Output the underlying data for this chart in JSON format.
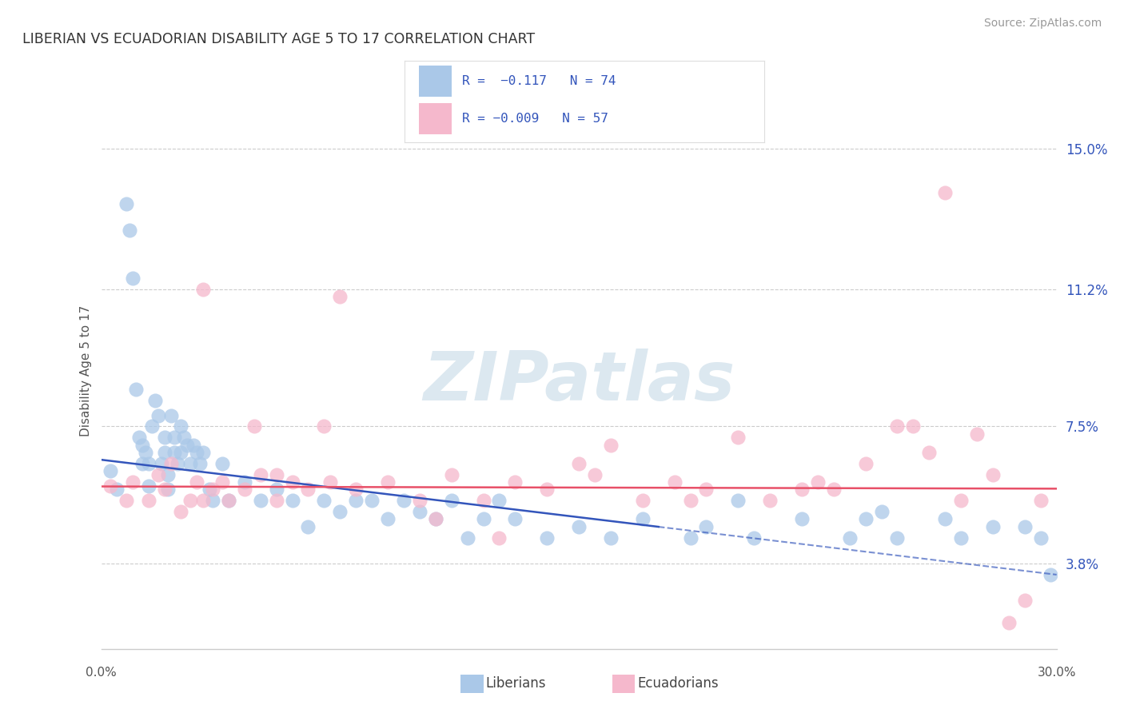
{
  "title": "LIBERIAN VS ECUADORIAN DISABILITY AGE 5 TO 17 CORRELATION CHART",
  "source": "Source: ZipAtlas.com",
  "ylabel": "Disability Age 5 to 17",
  "xlim": [
    0.0,
    30.0
  ],
  "ylim": [
    1.5,
    16.5
  ],
  "yticks": [
    3.8,
    7.5,
    11.2,
    15.0
  ],
  "ytick_labels": [
    "3.8%",
    "7.5%",
    "11.2%",
    "15.0%"
  ],
  "xtick_left": "0.0%",
  "xtick_right": "30.0%",
  "bg_color": "#ffffff",
  "grid_color": "#cccccc",
  "liberian_dot_color": "#aac8e8",
  "ecuadorian_dot_color": "#f5b8cc",
  "liberian_line_color": "#3355bb",
  "ecuadorian_line_color": "#e85068",
  "tick_label_color": "#3355bb",
  "title_color": "#333333",
  "source_color": "#999999",
  "axis_label_color": "#555555",
  "watermark_color": "#dce8f0",
  "legend_text_color": "#3355bb",
  "legend_border_color": "#dddddd",
  "lib_trend_y0": 6.6,
  "lib_trend_y1": 3.5,
  "ecu_trend_y0": 5.88,
  "ecu_trend_y1": 5.82,
  "lib_dash_start_x": 17.5,
  "liberian_x": [
    0.3,
    0.5,
    0.8,
    0.9,
    1.0,
    1.1,
    1.2,
    1.3,
    1.3,
    1.4,
    1.5,
    1.5,
    1.6,
    1.7,
    1.8,
    1.9,
    2.0,
    2.0,
    2.1,
    2.1,
    2.2,
    2.3,
    2.3,
    2.4,
    2.5,
    2.6,
    2.7,
    2.8,
    2.9,
    3.0,
    3.1,
    3.2,
    3.4,
    3.5,
    3.8,
    4.0,
    4.5,
    5.0,
    5.5,
    6.0,
    6.5,
    7.0,
    7.5,
    8.0,
    8.5,
    9.0,
    9.5,
    10.0,
    10.5,
    11.0,
    11.5,
    12.0,
    12.5,
    13.0,
    14.0,
    15.0,
    16.0,
    17.0,
    18.5,
    19.0,
    20.5,
    22.0,
    23.5,
    24.0,
    25.0,
    26.5,
    27.0,
    28.0,
    29.0,
    29.5,
    29.8,
    20.0,
    24.5,
    2.5
  ],
  "liberian_y": [
    6.3,
    5.8,
    13.5,
    12.8,
    11.5,
    8.5,
    7.2,
    7.0,
    6.5,
    6.8,
    6.5,
    5.9,
    7.5,
    8.2,
    7.8,
    6.5,
    6.8,
    7.2,
    6.2,
    5.8,
    7.8,
    7.2,
    6.8,
    6.5,
    7.5,
    7.2,
    7.0,
    6.5,
    7.0,
    6.8,
    6.5,
    6.8,
    5.8,
    5.5,
    6.5,
    5.5,
    6.0,
    5.5,
    5.8,
    5.5,
    4.8,
    5.5,
    5.2,
    5.5,
    5.5,
    5.0,
    5.5,
    5.2,
    5.0,
    5.5,
    4.5,
    5.0,
    5.5,
    5.0,
    4.5,
    4.8,
    4.5,
    5.0,
    4.5,
    4.8,
    4.5,
    5.0,
    4.5,
    5.0,
    4.5,
    5.0,
    4.5,
    4.8,
    4.8,
    4.5,
    3.5,
    5.5,
    5.2,
    6.8
  ],
  "ecuadorian_x": [
    0.3,
    0.8,
    1.0,
    1.5,
    1.8,
    2.0,
    2.2,
    2.5,
    2.8,
    3.0,
    3.2,
    3.5,
    3.8,
    4.0,
    4.5,
    5.0,
    5.5,
    6.0,
    6.5,
    7.0,
    8.0,
    9.0,
    10.0,
    11.0,
    12.0,
    13.0,
    14.0,
    15.0,
    16.0,
    17.0,
    18.0,
    19.0,
    20.0,
    21.0,
    22.0,
    23.0,
    24.0,
    25.0,
    26.0,
    27.0,
    28.0,
    29.0,
    7.5,
    12.5,
    18.5,
    25.5,
    4.8,
    7.2,
    10.5,
    15.5,
    3.2,
    5.5,
    22.5,
    28.5,
    29.5,
    27.5,
    26.5
  ],
  "ecuadorian_y": [
    5.9,
    5.5,
    6.0,
    5.5,
    6.2,
    5.8,
    6.5,
    5.2,
    5.5,
    6.0,
    5.5,
    5.8,
    6.0,
    5.5,
    5.8,
    6.2,
    5.5,
    6.0,
    5.8,
    7.5,
    5.8,
    6.0,
    5.5,
    6.2,
    5.5,
    6.0,
    5.8,
    6.5,
    7.0,
    5.5,
    6.0,
    5.8,
    7.2,
    5.5,
    5.8,
    5.8,
    6.5,
    7.5,
    6.8,
    5.5,
    6.2,
    2.8,
    11.0,
    4.5,
    5.5,
    7.5,
    7.5,
    6.0,
    5.0,
    6.2,
    11.2,
    6.2,
    6.0,
    2.2,
    5.5,
    7.3,
    13.8
  ]
}
